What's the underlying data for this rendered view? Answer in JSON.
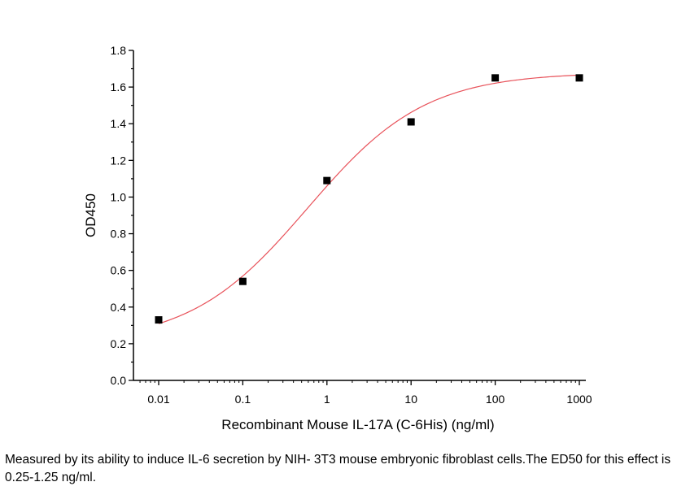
{
  "chart_data": {
    "type": "scatter",
    "xlabel": "Recombinant Mouse IL-17A (C-6His) (ng/ml)",
    "ylabel": "OD450",
    "x_scale": "log",
    "xlim": [
      0.01,
      1000
    ],
    "ylim": [
      0,
      1.8
    ],
    "x_ticks": [
      "0.01",
      "0.1",
      "1",
      "10",
      "100",
      "1000"
    ],
    "x_tick_values": [
      0.01,
      0.1,
      1,
      10,
      100,
      1000
    ],
    "y_ticks": [
      "0.0",
      "0.2",
      "0.4",
      "0.6",
      "0.8",
      "1.0",
      "1.2",
      "1.4",
      "1.6",
      "1.8"
    ],
    "y_tick_values": [
      0,
      0.2,
      0.4,
      0.6,
      0.8,
      1.0,
      1.2,
      1.4,
      1.6,
      1.8
    ],
    "grid": false,
    "series": [
      {
        "type": "scatter",
        "marker": "square",
        "color": "#000000",
        "x": [
          0.01,
          0.1,
          1,
          10,
          100,
          1000
        ],
        "y": [
          0.33,
          0.54,
          1.09,
          1.41,
          1.65,
          1.65
        ]
      },
      {
        "type": "line",
        "color": "#e8525a",
        "fit": "4PL",
        "params": {
          "bottom": 0.2,
          "top": 1.68,
          "ec50": 0.59,
          "hill": 0.62
        },
        "x_range": [
          0.01,
          1000
        ]
      }
    ]
  },
  "caption": "Measured by its ability to induce IL-6 secretion by NIH- 3T3 mouse embryonic fibroblast cells.The ED50 for this effect is 0.25-1.25 ng/ml."
}
